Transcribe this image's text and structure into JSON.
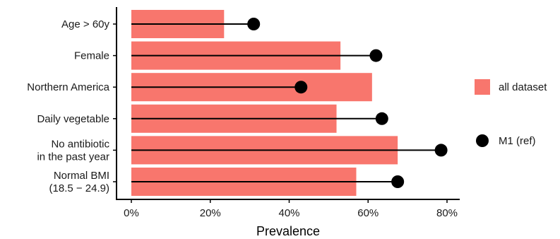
{
  "chart_data": {
    "type": "bar",
    "orientation": "horizontal",
    "title": "",
    "xlabel": "Prevalence",
    "ylabel": "",
    "xlim": [
      0,
      0.8
    ],
    "x_ticks": [
      0,
      0.2,
      0.4,
      0.6,
      0.8
    ],
    "x_tick_labels": [
      "0%",
      "20%",
      "40%",
      "60%",
      "80%"
    ],
    "grid": false,
    "legend_position": "right",
    "categories": [
      [
        "Age > 60y"
      ],
      [
        "Female"
      ],
      [
        "Northern America"
      ],
      [
        "Daily vegetable"
      ],
      [
        "No antibiotic",
        "in the past year"
      ],
      [
        "Normal BMI",
        "(18.5 − 24.9)"
      ]
    ],
    "series": [
      {
        "name": "all dataset",
        "kind": "bar",
        "color": "#f8766d",
        "values": [
          0.235,
          0.53,
          0.61,
          0.52,
          0.675,
          0.57
        ]
      },
      {
        "name": "M1 (ref)",
        "kind": "lollipop",
        "color": "#000000",
        "values": [
          0.31,
          0.62,
          0.43,
          0.635,
          0.785,
          0.675
        ]
      }
    ]
  }
}
